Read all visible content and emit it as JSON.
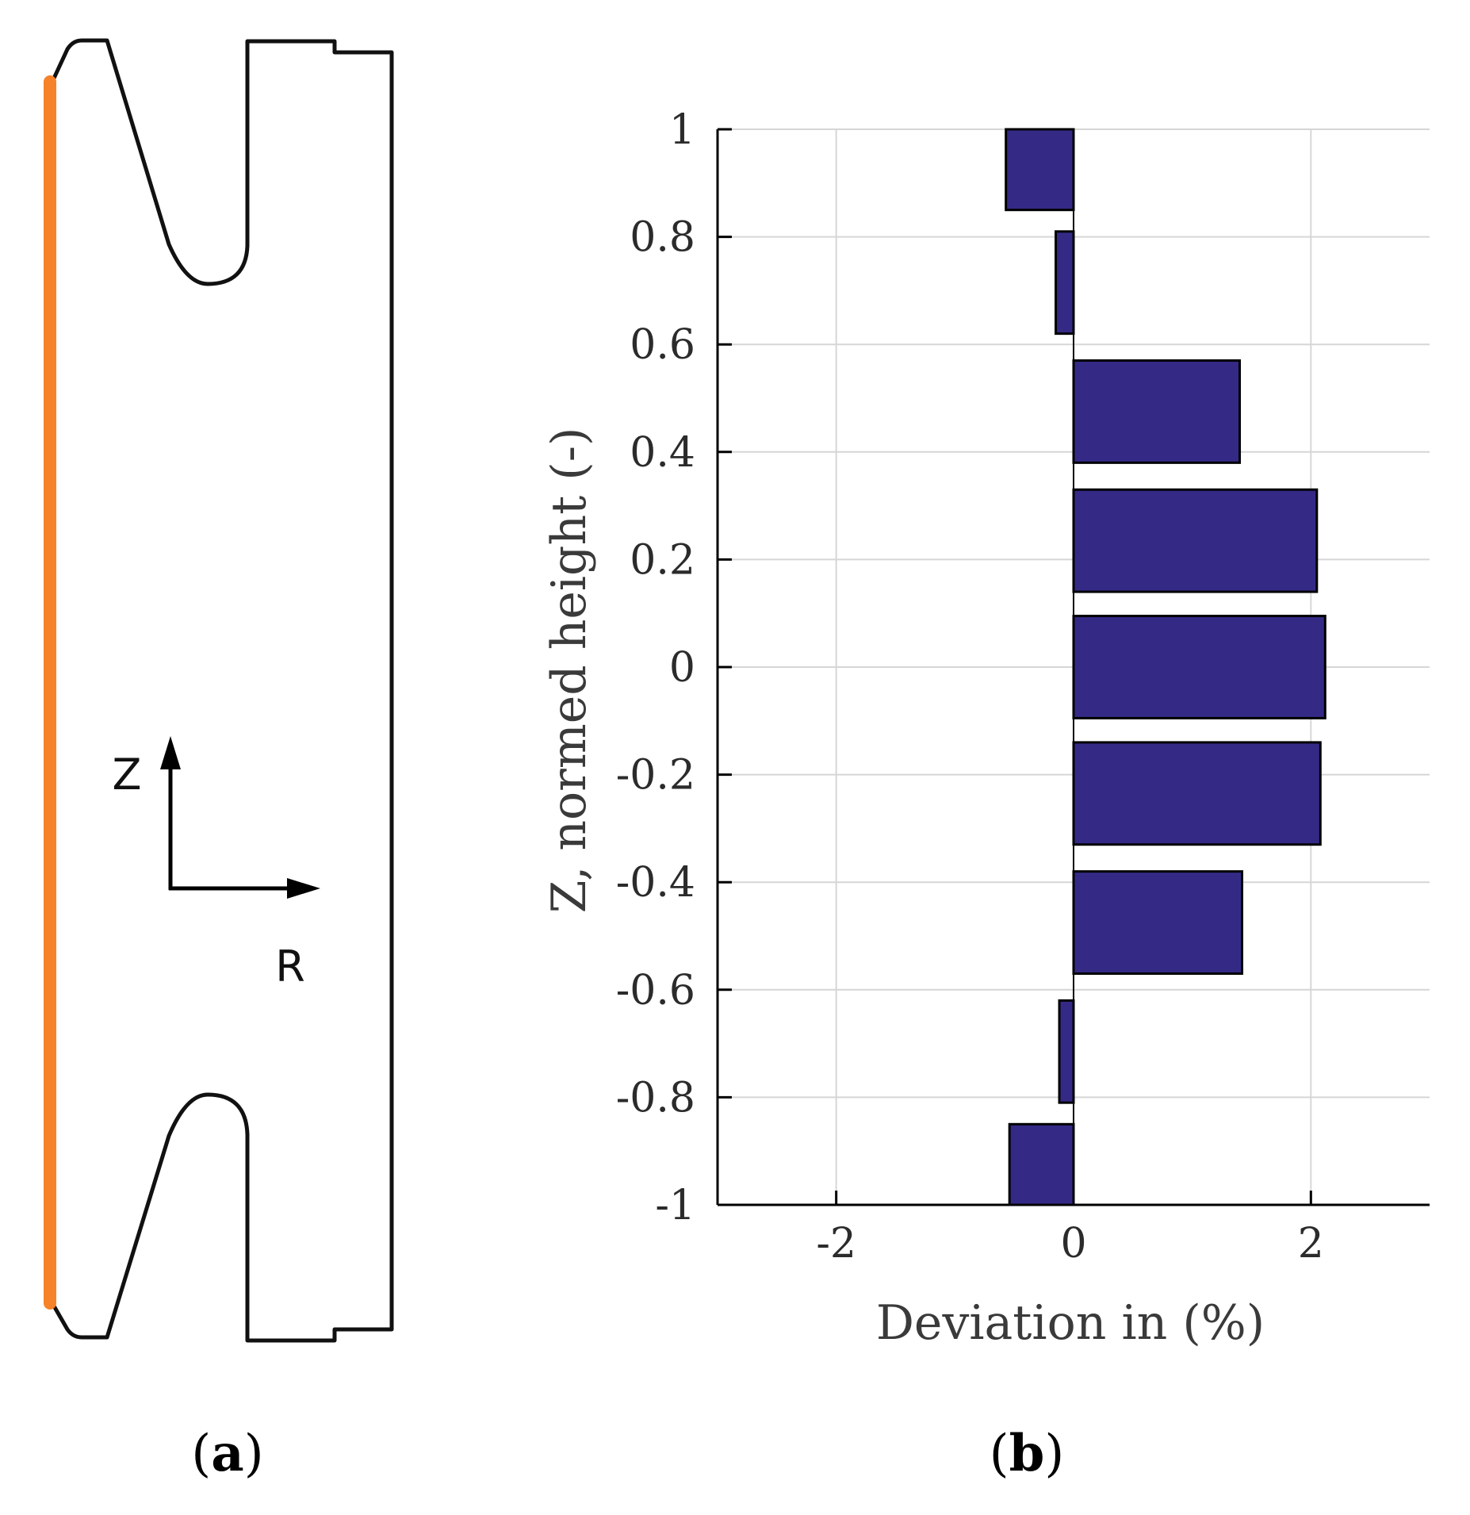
{
  "colors": {
    "bar_fill": "#342a86",
    "bar_stroke": "#000000",
    "highlight_edge": "#f6822a",
    "outline": "#111111",
    "grid": "#d6d6d6"
  },
  "panel_a": {
    "label_open": "(",
    "label_letter": "a",
    "label_close": ")",
    "axis_z": "Z",
    "axis_r": "R"
  },
  "panel_b": {
    "label_open": "(",
    "label_letter": "b",
    "label_close": ")"
  },
  "chart_data": {
    "type": "bar",
    "orientation": "horizontal",
    "title": "",
    "xlabel": "Deviation in (%)",
    "ylabel": "Z, normed height (-)",
    "xlim": [
      -3,
      3
    ],
    "ylim": [
      -1,
      1
    ],
    "xticks": [
      -2,
      0,
      2
    ],
    "xtick_labels": [
      "-2",
      "0",
      "2"
    ],
    "yticks": [
      1,
      0.8,
      0.6,
      0.4,
      0.2,
      0,
      -0.2,
      -0.4,
      -0.6,
      -0.8,
      -1
    ],
    "ytick_labels": [
      "1",
      "0.8",
      "0.6",
      "0.4",
      "0.2",
      "0",
      "-0.2",
      "-0.4",
      "-0.6",
      "-0.8",
      "-1"
    ],
    "grid": true,
    "series": [
      {
        "name": "Deviation",
        "bars": [
          {
            "z_low": 0.85,
            "z_high": 1.0,
            "value": -0.57
          },
          {
            "z_low": 0.62,
            "z_high": 0.81,
            "value": -0.15
          },
          {
            "z_low": 0.38,
            "z_high": 0.57,
            "value": 1.4
          },
          {
            "z_low": 0.14,
            "z_high": 0.33,
            "value": 2.05
          },
          {
            "z_low": -0.095,
            "z_high": 0.095,
            "value": 2.12
          },
          {
            "z_low": -0.33,
            "z_high": -0.14,
            "value": 2.08
          },
          {
            "z_low": -0.57,
            "z_high": -0.38,
            "value": 1.42
          },
          {
            "z_low": -0.81,
            "z_high": -0.62,
            "value": -0.12
          },
          {
            "z_low": -1.0,
            "z_high": -0.85,
            "value": -0.54
          }
        ]
      }
    ]
  }
}
